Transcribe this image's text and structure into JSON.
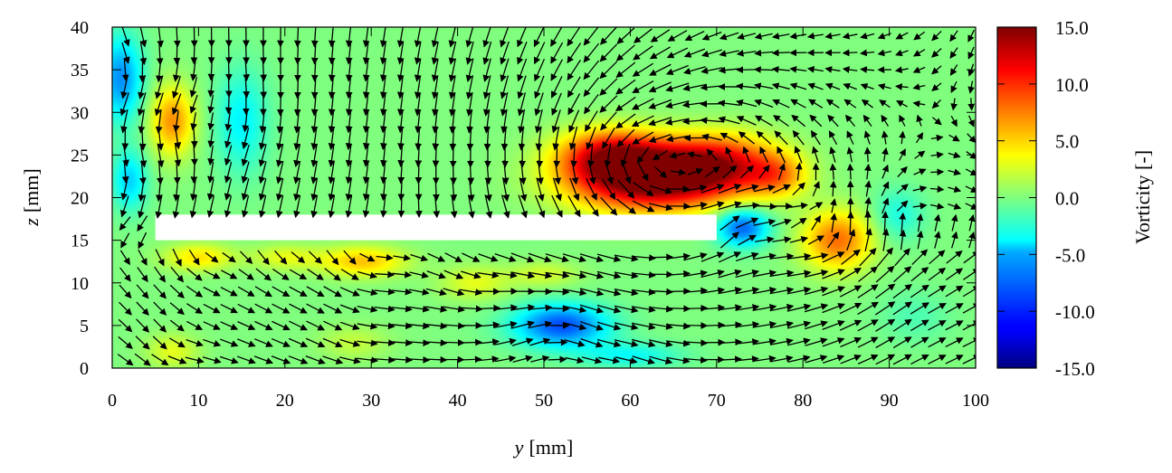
{
  "chart_data": {
    "type": "heatmap",
    "subtype": "vorticity field with velocity vectors",
    "xlabel_var": "y",
    "xlabel_unit": "[mm]",
    "ylabel_var": "z",
    "ylabel_unit": "[mm]",
    "xlim": [
      0,
      100
    ],
    "ylim": [
      0,
      40
    ],
    "x_ticks": [
      "0",
      "10",
      "20",
      "30",
      "40",
      "50",
      "60",
      "70",
      "80",
      "90",
      "100"
    ],
    "y_ticks": [
      "0",
      "5",
      "10",
      "15",
      "20",
      "25",
      "30",
      "35",
      "40"
    ],
    "colorbar": {
      "label": "Vorticity [-]",
      "range": [
        -15,
        15
      ],
      "colormap": "jet",
      "ticks": [
        "15.0",
        "10.0",
        "5.0",
        "0.0",
        "-5.0",
        "-10.0",
        "-15.0"
      ]
    },
    "solid_region": {
      "y": [
        5,
        70
      ],
      "z": [
        15,
        18
      ]
    },
    "vortices": [
      {
        "y": 62,
        "z": 22,
        "vorticity": 15.0,
        "size_y": 9,
        "size_z": 3.6
      },
      {
        "y": 70,
        "z": 24,
        "vorticity": 11.0,
        "size_y": 7,
        "size_z": 3.4
      },
      {
        "y": 58,
        "z": 25,
        "vorticity": 11.0,
        "size_y": 6,
        "size_z": 3.0
      },
      {
        "y": 84,
        "z": 15,
        "vorticity": 8.0,
        "size_y": 4,
        "size_z": 3.5
      },
      {
        "y": 77,
        "z": 22.5,
        "vorticity": 5.5,
        "size_y": 3.5,
        "size_z": 2.5
      },
      {
        "y": 73,
        "z": 16.5,
        "vorticity": -8.5,
        "size_y": 3,
        "size_z": 2.2
      },
      {
        "y": 52,
        "z": 5,
        "vorticity": -9.0,
        "size_y": 5.5,
        "size_z": 2.5
      },
      {
        "y": 60,
        "z": 1.5,
        "vorticity": -3.5,
        "size_y": 6,
        "size_z": 1.5
      },
      {
        "y": 7,
        "z": 29,
        "vorticity": 7.0,
        "size_y": 2.5,
        "size_z": 4
      },
      {
        "y": 1,
        "z": 34,
        "vorticity": -7.0,
        "size_y": 2.5,
        "size_z": 5
      },
      {
        "y": 2,
        "z": 22,
        "vorticity": -5.0,
        "size_y": 2,
        "size_z": 3.5
      },
      {
        "y": 15,
        "z": 29,
        "vorticity": -4.0,
        "size_y": 3,
        "size_z": 6
      },
      {
        "y": 10,
        "z": 13,
        "vorticity": 4.5,
        "size_y": 4,
        "size_z": 1.6
      },
      {
        "y": 29,
        "z": 12.5,
        "vorticity": 5.5,
        "size_y": 5,
        "size_z": 1.8
      },
      {
        "y": 20,
        "z": 13,
        "vorticity": 3.0,
        "size_y": 4,
        "size_z": 1.5
      },
      {
        "y": 42,
        "z": 10,
        "vorticity": 3.0,
        "size_y": 4,
        "size_z": 2
      },
      {
        "y": 50,
        "z": 11,
        "vorticity": 2.5,
        "size_y": 4,
        "size_z": 1.5
      },
      {
        "y": 7,
        "z": 2,
        "vorticity": 3.0,
        "size_y": 3,
        "size_z": 2
      },
      {
        "y": 28,
        "z": 3,
        "vorticity": 2.0,
        "size_y": 4,
        "size_z": 2
      },
      {
        "y": 91,
        "z": 18,
        "vorticity": -3.0,
        "size_y": 3,
        "size_z": 3
      },
      {
        "y": 93,
        "z": 6,
        "vorticity": -1.5,
        "size_y": 4,
        "size_z": 3
      }
    ],
    "vector_grid": {
      "dy": 2,
      "dz": 2
    },
    "grid": false
  }
}
